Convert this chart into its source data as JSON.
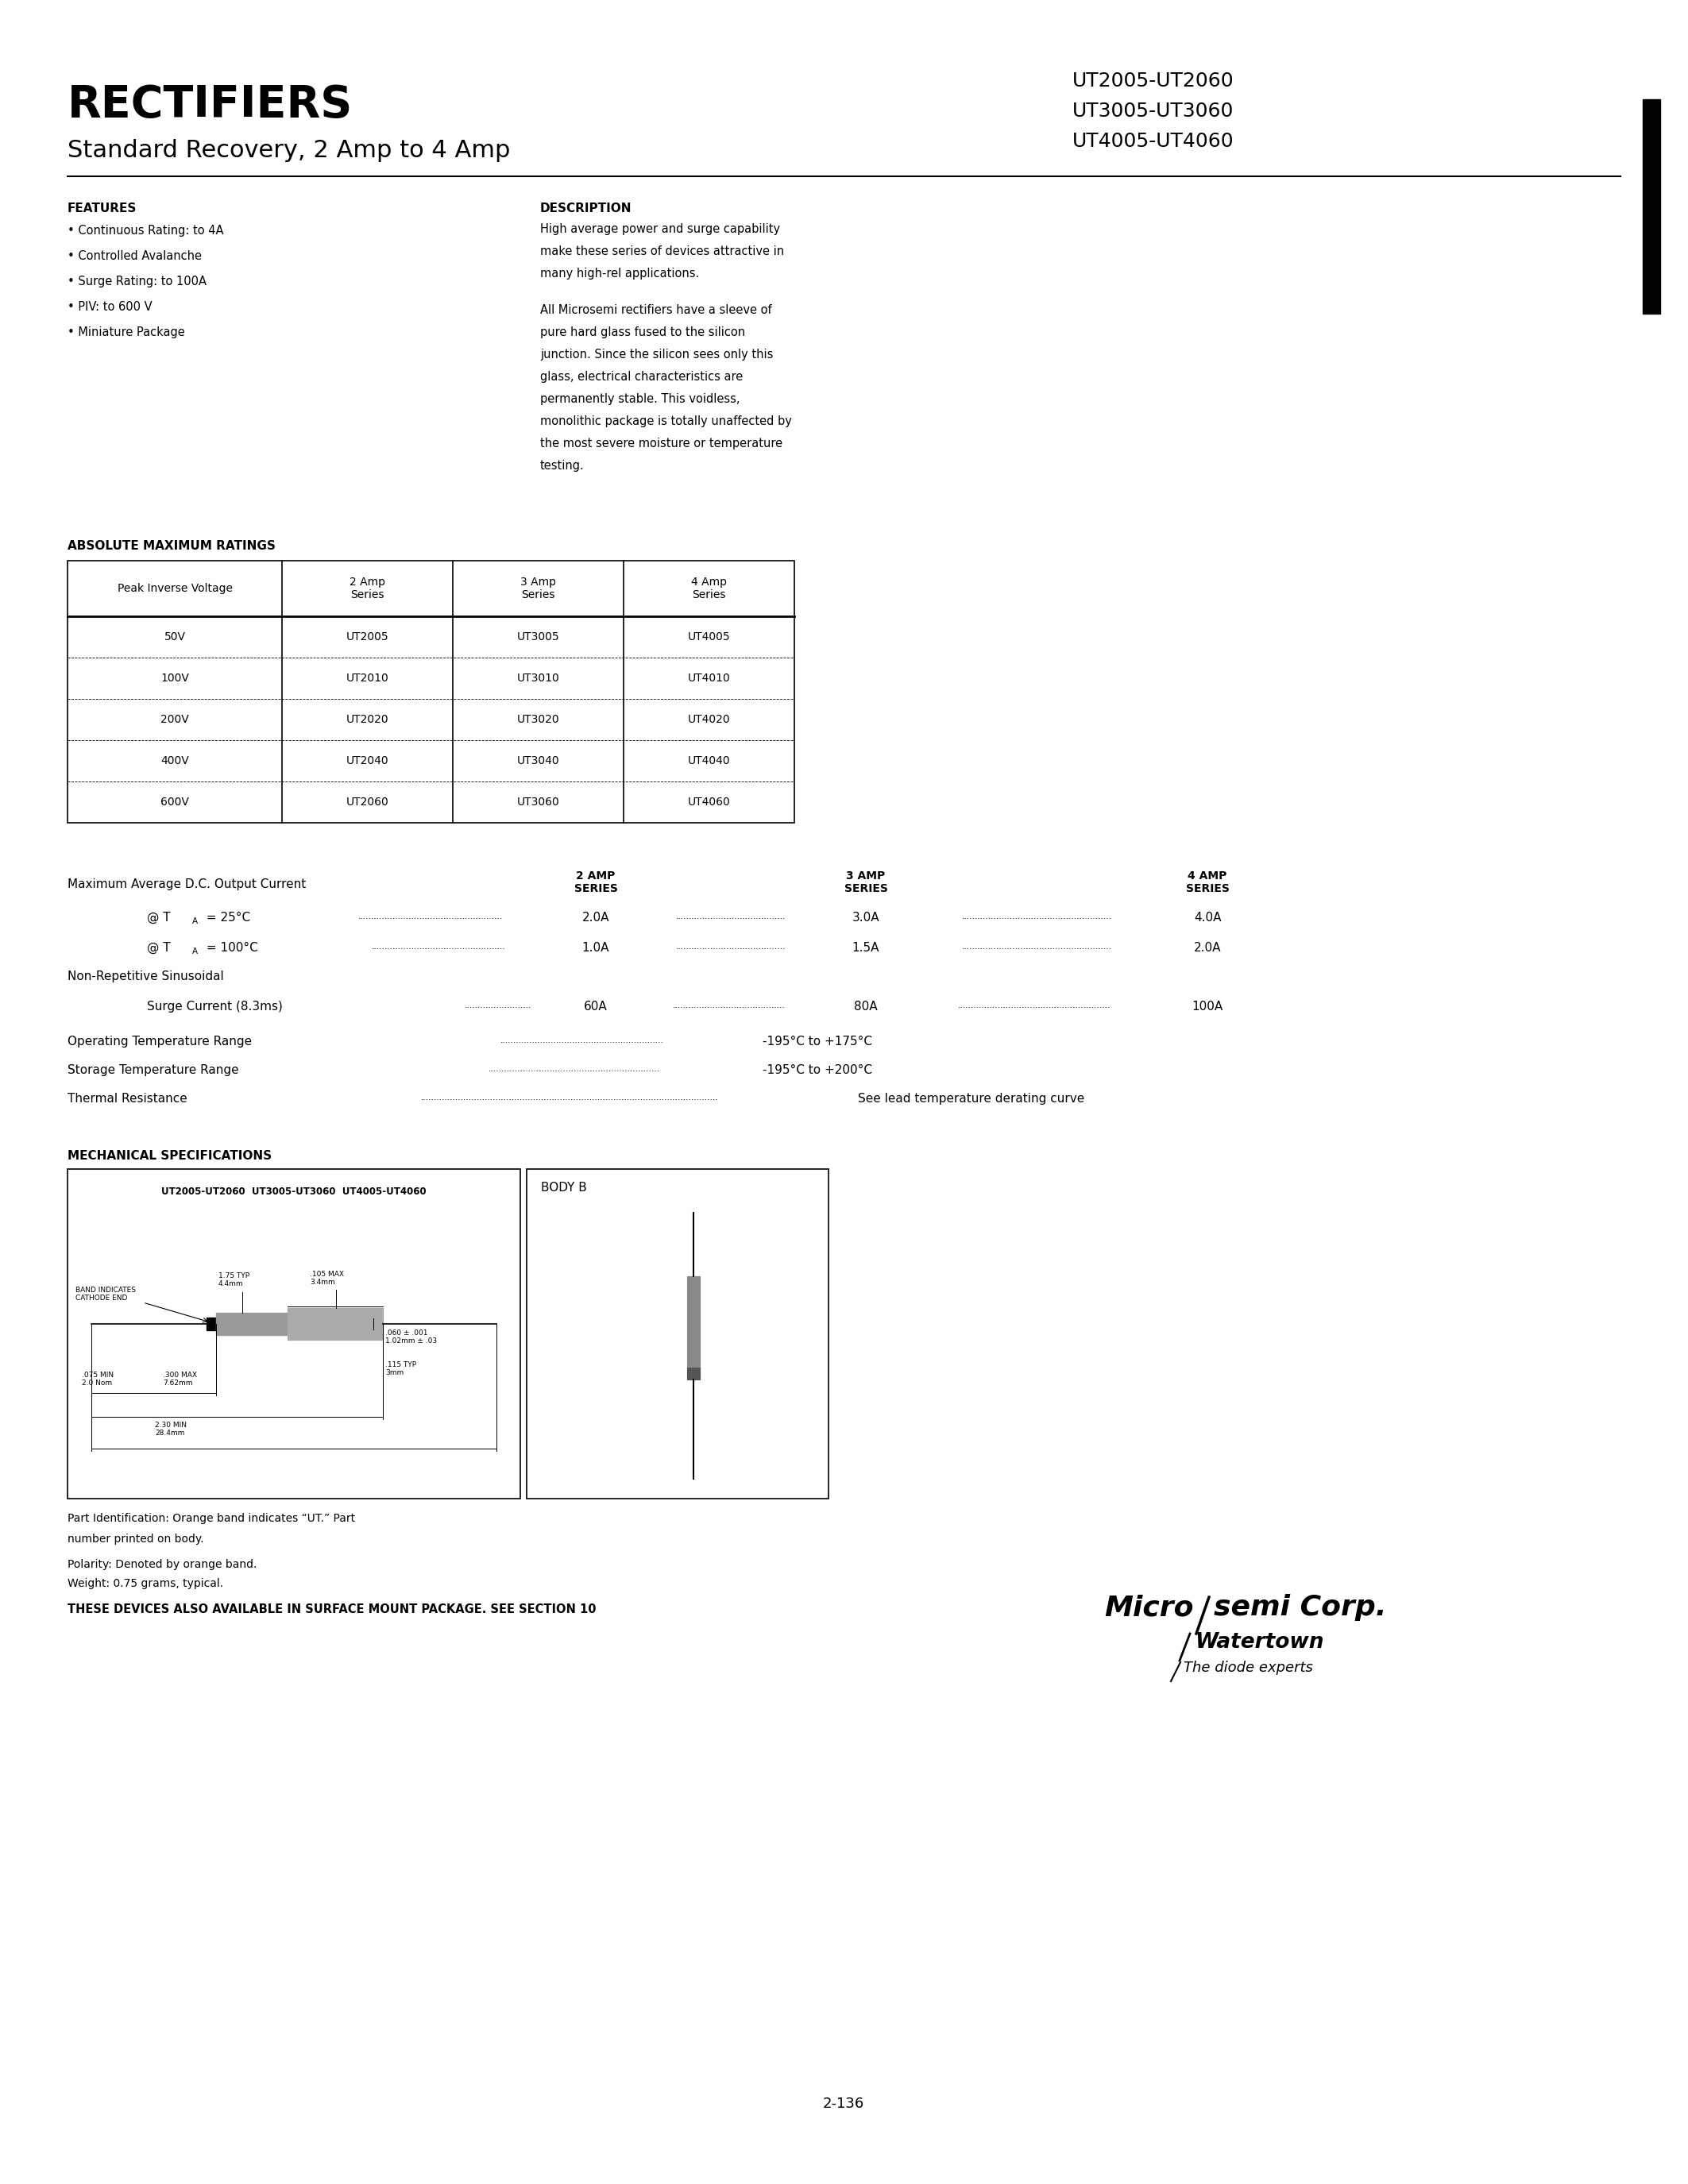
{
  "bg_color": "#ffffff",
  "title_rectifiers": "RECTIFIERS",
  "title_subtitle": "Standard Recovery, 2 Amp to 4 Amp",
  "part_numbers": [
    "UT2005-UT2060",
    "UT3005-UT3060",
    "UT4005-UT4060"
  ],
  "features_title": "FEATURES",
  "features": [
    "Continuous Rating: to 4A",
    "Controlled Avalanche",
    "Surge Rating: to 100A",
    "PIV: to 600 V",
    "Miniature Package"
  ],
  "description_title": "DESCRIPTION",
  "description_text": [
    "High average power and surge capability",
    "make these series of devices attractive in",
    "many high-rel applications.",
    "",
    "All Microsemi rectifiers have a sleeve of",
    "pure hard glass fused to the silicon",
    "junction. Since the silicon sees only this",
    "glass, electrical characteristics are",
    "permanently stable. This voidless,",
    "monolithic package is totally unaffected by",
    "the most severe moisture or temperature",
    "testing."
  ],
  "abs_max_title": "ABSOLUTE MAXIMUM RATINGS",
  "table_headers": [
    "Peak Inverse Voltage",
    "2 Amp\nSeries",
    "3 Amp\nSeries",
    "4 Amp\nSeries"
  ],
  "table_rows": [
    [
      "50V",
      "UT2005",
      "UT3005",
      "UT4005"
    ],
    [
      "100V",
      "UT2010",
      "UT3010",
      "UT4010"
    ],
    [
      "200V",
      "UT2020",
      "UT3020",
      "UT4020"
    ],
    [
      "400V",
      "UT2040",
      "UT3040",
      "UT4040"
    ],
    [
      "600V",
      "UT2060",
      "UT3060",
      "UT4060"
    ]
  ],
  "specs_2amp": "2 AMP\nSERIES",
  "specs_3amp": "3 AMP\nSERIES",
  "specs_4amp": "4 AMP\nSERIES",
  "max_dc_label": "Maximum Average D.C. Output Current",
  "non_rep": "Non-Repetitive Sinusoidal",
  "op_temp_val": "-195°C to +175°C",
  "stor_temp_val": "-195°C to +200°C",
  "thermal_val": "See lead temperature derating curve",
  "mech_title": "MECHANICAL SPECIFICATIONS",
  "body_b_label": "BODY B",
  "mech_series": "UT2005-UT2060  UT3005-UT3060  UT4005-UT4060",
  "part_id_note1": "Part Identification: Orange band indicates “UT.” Part",
  "part_id_note2": "number printed on body.",
  "polarity_note": "Polarity: Denoted by orange band.",
  "weight_note": "Weight: 0.75 grams, typical.",
  "surface_mount_note": "THESE DEVICES ALSO AVAILABLE IN SURFACE MOUNT PACKAGE. SEE SECTION 10",
  "page_num": "2-136"
}
